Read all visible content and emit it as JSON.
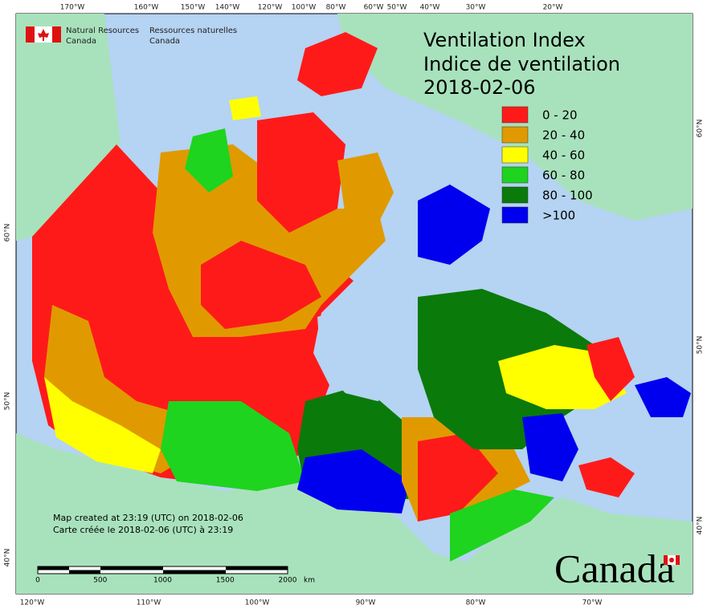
{
  "header": {
    "agency_en": [
      "Natural Resources",
      "Canada"
    ],
    "agency_fr": [
      "Ressources naturelles",
      "Canada"
    ]
  },
  "title": [
    "Ventilation Index",
    "Indice de ventilation",
    "2018-02-06"
  ],
  "legend": [
    {
      "label": "0 - 20",
      "color": "#ff1a1a"
    },
    {
      "label": "20 - 40",
      "color": "#e09a00"
    },
    {
      "label": "40 - 60",
      "color": "#ffff00"
    },
    {
      "label": "60 - 80",
      "color": "#1ed41e"
    },
    {
      "label": "80 - 100",
      "color": "#0a7a0a"
    },
    {
      "label": ">100",
      "color": "#0000ee"
    }
  ],
  "graticule": {
    "top": [
      "170°W",
      "160°W",
      "150°W",
      "140°W",
      "120°W",
      "100°W",
      "80°W",
      "60°W",
      "50°W",
      "40°W",
      "30°W",
      "20°W"
    ],
    "bottom": [
      "120°W",
      "110°W",
      "100°W",
      "90°W",
      "80°W",
      "70°W"
    ],
    "left": [
      "60°N",
      "50°N",
      "40°N"
    ],
    "right": [
      "60°N",
      "50°N",
      "40°N"
    ]
  },
  "credit": [
    "Map created at 23:19 (UTC) on 2018-02-06",
    "Carte créée le 2018-02-06 (UTC) à 23:19"
  ],
  "scale": {
    "labels": [
      "0",
      "500",
      "1000",
      "1500",
      "2000"
    ],
    "unit": "km"
  },
  "wordmark": "Canada"
}
